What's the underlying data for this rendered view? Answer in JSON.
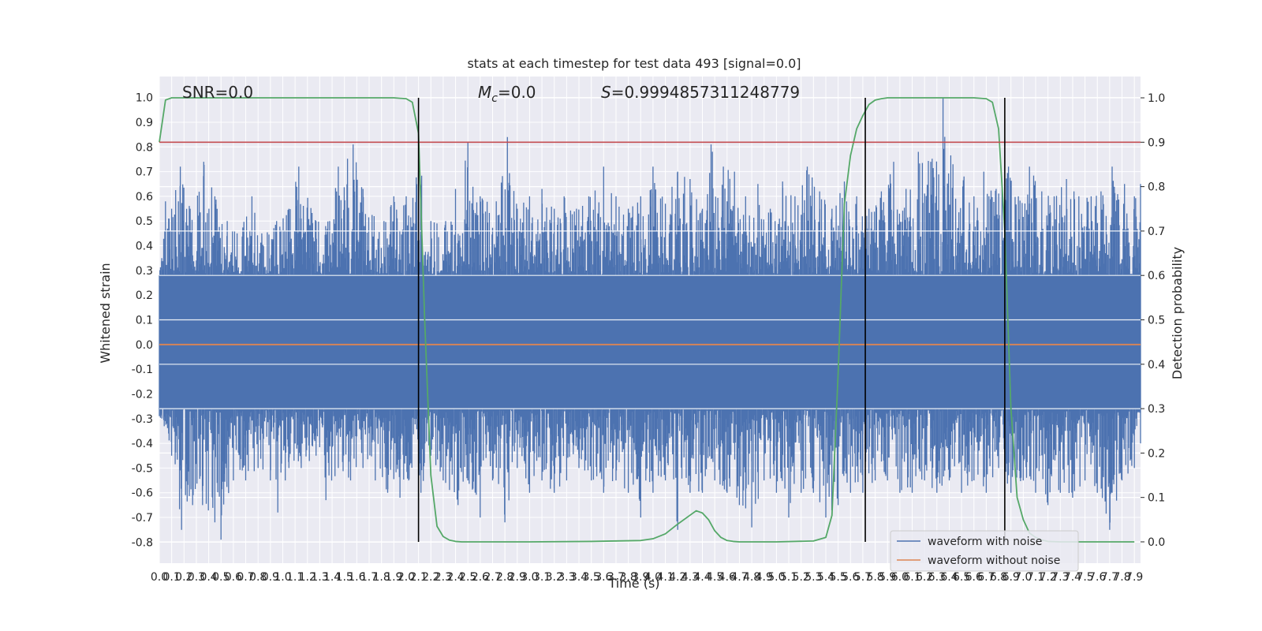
{
  "chart_data": {
    "type": "line",
    "title": "stats at each timestep for test data 493 [signal=0.0]",
    "xlabel": "Time (s)",
    "ylabel_left": "Whitened strain",
    "ylabel_right": "Detection probability",
    "xlim": [
      0.0,
      7.95
    ],
    "ylim_left": [
      -0.885,
      1.085
    ],
    "ylim_right": [
      -0.048,
      1.048
    ],
    "xticks": [
      "0.0",
      "0.1",
      "0.2",
      "0.3",
      "0.4",
      "0.5",
      "0.6",
      "0.7",
      "0.8",
      "0.9",
      "1.0",
      "1.1",
      "1.2",
      "1.3",
      "1.4",
      "1.5",
      "1.6",
      "1.7",
      "1.8",
      "1.9",
      "2.0",
      "2.1",
      "2.2",
      "2.3",
      "2.4",
      "2.5",
      "2.6",
      "2.7",
      "2.8",
      "2.9",
      "3.0",
      "3.1",
      "3.2",
      "3.3",
      "3.4",
      "3.5",
      "3.6",
      "3.7",
      "3.8",
      "3.9",
      "4.0",
      "4.1",
      "4.2",
      "4.3",
      "4.4",
      "4.5",
      "4.6",
      "4.7",
      "4.8",
      "4.9",
      "5.0",
      "5.1",
      "5.2",
      "5.3",
      "5.4",
      "5.5",
      "5.6",
      "5.7",
      "5.8",
      "5.9",
      "6.0",
      "6.1",
      "6.2",
      "6.3",
      "6.4",
      "6.5",
      "6.6",
      "6.7",
      "6.8",
      "6.9",
      "7.0",
      "7.1",
      "7.2",
      "7.3",
      "7.4",
      "7.5",
      "7.6",
      "7.7",
      "7.8",
      "7.9"
    ],
    "yticks_left": [
      "-0.8",
      "-0.7",
      "-0.6",
      "-0.5",
      "-0.4",
      "-0.3",
      "-0.2",
      "-0.1",
      "0.0",
      "0.1",
      "0.2",
      "0.3",
      "0.4",
      "0.5",
      "0.6",
      "0.7",
      "0.8",
      "0.9",
      "1.0"
    ],
    "yticks_right": [
      "0.0",
      "0.1",
      "0.2",
      "0.3",
      "0.4",
      "0.5",
      "0.6",
      "0.7",
      "0.8",
      "0.9",
      "1.0"
    ],
    "grid": true,
    "legend_placement": "lower-right",
    "annotations": {
      "snr": "SNR=0.0",
      "mc_symbol": "M",
      "mc_sub": "c",
      "mc_value": "=0.0",
      "s_symbol": "S",
      "s_value": "=0.9994857311248779"
    },
    "series": [
      {
        "name": "waveform with noise",
        "axis": "left",
        "color": "#4c72b0",
        "description_values": "noise envelope peaks",
        "peaks": [
          [
            0.02,
            0.35
          ],
          [
            0.05,
            0.58
          ],
          [
            0.1,
            0.55
          ],
          [
            0.17,
            0.72
          ],
          [
            0.25,
            0.55
          ],
          [
            0.36,
            0.74
          ],
          [
            0.45,
            0.6
          ],
          [
            0.55,
            0.5
          ],
          [
            0.63,
            0.45
          ],
          [
            0.75,
            0.6
          ],
          [
            0.83,
            0.45
          ],
          [
            0.95,
            0.5
          ],
          [
            1.05,
            0.55
          ],
          [
            1.13,
            0.72
          ],
          [
            1.27,
            0.5
          ],
          [
            1.38,
            0.5
          ],
          [
            1.45,
            0.72
          ],
          [
            1.57,
            0.81
          ],
          [
            1.65,
            0.63
          ],
          [
            1.74,
            0.52
          ],
          [
            1.82,
            0.5
          ],
          [
            1.9,
            0.6
          ],
          [
            2.0,
            0.6
          ],
          [
            2.1,
            0.75
          ],
          [
            2.2,
            0.5
          ],
          [
            2.32,
            0.5
          ],
          [
            2.4,
            0.63
          ],
          [
            2.5,
            0.82
          ],
          [
            2.6,
            0.6
          ],
          [
            2.73,
            0.58
          ],
          [
            2.82,
            0.84
          ],
          [
            2.9,
            0.55
          ],
          [
            3.0,
            0.6
          ],
          [
            3.1,
            0.63
          ],
          [
            3.2,
            0.55
          ],
          [
            3.28,
            0.6
          ],
          [
            3.38,
            0.55
          ],
          [
            3.48,
            0.6
          ],
          [
            3.6,
            0.72
          ],
          [
            3.7,
            0.6
          ],
          [
            3.8,
            0.55
          ],
          [
            3.9,
            0.6
          ],
          [
            4.0,
            0.72
          ],
          [
            4.1,
            0.57
          ],
          [
            4.2,
            0.7
          ],
          [
            4.3,
            0.67
          ],
          [
            4.4,
            0.55
          ],
          [
            4.47,
            0.81
          ],
          [
            4.57,
            0.72
          ],
          [
            4.66,
            0.7
          ],
          [
            4.75,
            0.6
          ],
          [
            4.85,
            0.65
          ],
          [
            4.95,
            0.55
          ],
          [
            5.05,
            0.66
          ],
          [
            5.15,
            0.6
          ],
          [
            5.25,
            0.72
          ],
          [
            5.35,
            0.62
          ],
          [
            5.45,
            0.55
          ],
          [
            5.55,
            0.66
          ],
          [
            5.65,
            0.6
          ],
          [
            5.75,
            0.55
          ],
          [
            5.85,
            0.62
          ],
          [
            5.95,
            0.74
          ],
          [
            6.05,
            0.63
          ],
          [
            6.15,
            0.78
          ],
          [
            6.25,
            0.74
          ],
          [
            6.35,
            1.0
          ],
          [
            6.43,
            0.73
          ],
          [
            6.52,
            0.68
          ],
          [
            6.6,
            0.6
          ],
          [
            6.68,
            0.7
          ],
          [
            6.78,
            0.63
          ],
          [
            6.88,
            0.72
          ],
          [
            6.96,
            0.6
          ],
          [
            7.05,
            0.72
          ],
          [
            7.15,
            0.62
          ],
          [
            7.25,
            0.6
          ],
          [
            7.35,
            0.67
          ],
          [
            7.45,
            0.6
          ],
          [
            7.55,
            0.6
          ],
          [
            7.63,
            0.62
          ],
          [
            7.72,
            0.72
          ],
          [
            7.82,
            0.65
          ],
          [
            7.9,
            0.6
          ],
          [
            7.95,
            0.65
          ]
        ],
        "troughs": [
          [
            0.02,
            -0.3
          ],
          [
            0.1,
            -0.45
          ],
          [
            0.18,
            -0.75
          ],
          [
            0.27,
            -0.65
          ],
          [
            0.35,
            -0.65
          ],
          [
            0.45,
            -0.72
          ],
          [
            0.5,
            -0.79
          ],
          [
            0.6,
            -0.55
          ],
          [
            0.7,
            -0.55
          ],
          [
            0.8,
            -0.5
          ],
          [
            0.9,
            -0.55
          ],
          [
            0.96,
            -0.68
          ],
          [
            1.05,
            -0.5
          ],
          [
            1.15,
            -0.5
          ],
          [
            1.27,
            -0.45
          ],
          [
            1.35,
            -0.63
          ],
          [
            1.45,
            -0.5
          ],
          [
            1.55,
            -0.55
          ],
          [
            1.65,
            -0.5
          ],
          [
            1.75,
            -0.55
          ],
          [
            1.85,
            -0.6
          ],
          [
            1.95,
            -0.62
          ],
          [
            2.02,
            -0.55
          ],
          [
            2.12,
            -0.6
          ],
          [
            2.2,
            -0.45
          ],
          [
            2.3,
            -0.55
          ],
          [
            2.42,
            -0.65
          ],
          [
            2.5,
            -0.55
          ],
          [
            2.6,
            -0.7
          ],
          [
            2.7,
            -0.55
          ],
          [
            2.8,
            -0.72
          ],
          [
            2.9,
            -0.5
          ],
          [
            3.0,
            -0.6
          ],
          [
            3.1,
            -0.55
          ],
          [
            3.2,
            -0.6
          ],
          [
            3.3,
            -0.55
          ],
          [
            3.4,
            -0.5
          ],
          [
            3.5,
            -0.55
          ],
          [
            3.6,
            -0.6
          ],
          [
            3.7,
            -0.55
          ],
          [
            3.8,
            -0.6
          ],
          [
            3.9,
            -0.7
          ],
          [
            4.0,
            -0.6
          ],
          [
            4.1,
            -0.55
          ],
          [
            4.2,
            -0.75
          ],
          [
            4.3,
            -0.6
          ],
          [
            4.4,
            -0.6
          ],
          [
            4.5,
            -0.55
          ],
          [
            4.6,
            -0.6
          ],
          [
            4.7,
            -0.65
          ],
          [
            4.8,
            -0.74
          ],
          [
            4.9,
            -0.55
          ],
          [
            5.0,
            -0.6
          ],
          [
            5.1,
            -0.7
          ],
          [
            5.2,
            -0.6
          ],
          [
            5.3,
            -0.6
          ],
          [
            5.4,
            -0.7
          ],
          [
            5.5,
            -0.65
          ],
          [
            5.6,
            -0.6
          ],
          [
            5.7,
            -0.6
          ],
          [
            5.8,
            -0.55
          ],
          [
            5.9,
            -0.55
          ],
          [
            6.0,
            -0.6
          ],
          [
            6.1,
            -0.6
          ],
          [
            6.2,
            -0.55
          ],
          [
            6.3,
            -0.6
          ],
          [
            6.4,
            -0.55
          ],
          [
            6.5,
            -0.6
          ],
          [
            6.6,
            -0.55
          ],
          [
            6.7,
            -0.6
          ],
          [
            6.8,
            -0.5
          ],
          [
            6.9,
            -0.6
          ],
          [
            7.0,
            -0.55
          ],
          [
            7.1,
            -0.6
          ],
          [
            7.2,
            -0.65
          ],
          [
            7.3,
            -0.6
          ],
          [
            7.4,
            -0.62
          ],
          [
            7.5,
            -0.55
          ],
          [
            7.6,
            -0.6
          ],
          [
            7.7,
            -0.75
          ],
          [
            7.8,
            -0.55
          ],
          [
            7.9,
            -0.5
          ],
          [
            7.95,
            -0.4
          ]
        ]
      },
      {
        "name": "waveform without noise",
        "axis": "left",
        "color": "#dd8452",
        "x": [
          0.0,
          7.95
        ],
        "y": [
          0.0,
          0.0
        ]
      },
      {
        "name": "",
        "axis": "right",
        "color": "#55a868",
        "x": [
          0.0,
          0.05,
          0.1,
          0.2,
          0.5,
          1.0,
          1.5,
          1.9,
          2.0,
          2.05,
          2.1,
          2.15,
          2.2,
          2.25,
          2.3,
          2.35,
          2.4,
          2.45,
          2.5,
          2.55,
          2.6,
          2.7,
          3.0,
          3.5,
          3.9,
          4.0,
          4.1,
          4.2,
          4.3,
          4.35,
          4.4,
          4.45,
          4.5,
          4.55,
          4.6,
          4.65,
          4.7,
          4.8,
          5.0,
          5.3,
          5.4,
          5.45,
          5.5,
          5.55,
          5.6,
          5.65,
          5.7,
          5.75,
          5.8,
          5.85,
          5.9,
          5.95,
          6.0,
          6.1,
          6.3,
          6.6,
          6.7,
          6.75,
          6.8,
          6.85,
          6.9,
          6.95,
          7.0,
          7.05,
          7.1,
          7.15,
          7.2,
          7.3,
          7.5,
          7.9
        ],
        "y": [
          0.9,
          0.995,
          1.0,
          1.0,
          1.0,
          1.0,
          1.0,
          1.0,
          0.998,
          0.99,
          0.92,
          0.5,
          0.15,
          0.035,
          0.012,
          0.004,
          0.001,
          0.0,
          0.0,
          0.0,
          0.0,
          0.0,
          0.0,
          0.001,
          0.003,
          0.007,
          0.018,
          0.04,
          0.06,
          0.07,
          0.065,
          0.05,
          0.025,
          0.01,
          0.003,
          0.001,
          0.0,
          0.0,
          0.0,
          0.002,
          0.01,
          0.06,
          0.38,
          0.76,
          0.87,
          0.93,
          0.96,
          0.985,
          0.995,
          0.998,
          1.0,
          1.0,
          1.0,
          1.0,
          1.0,
          1.0,
          0.998,
          0.99,
          0.93,
          0.7,
          0.3,
          0.1,
          0.05,
          0.02,
          0.01,
          0.004,
          0.001,
          0.0,
          0.0,
          0.0
        ]
      },
      {
        "name": "",
        "axis": "right",
        "color": "#c44e52",
        "x": [
          0.0,
          7.95
        ],
        "y": [
          0.9,
          0.9
        ]
      }
    ],
    "vlines": [
      2.1,
      5.72,
      6.85
    ],
    "vline_color": "#000000"
  }
}
